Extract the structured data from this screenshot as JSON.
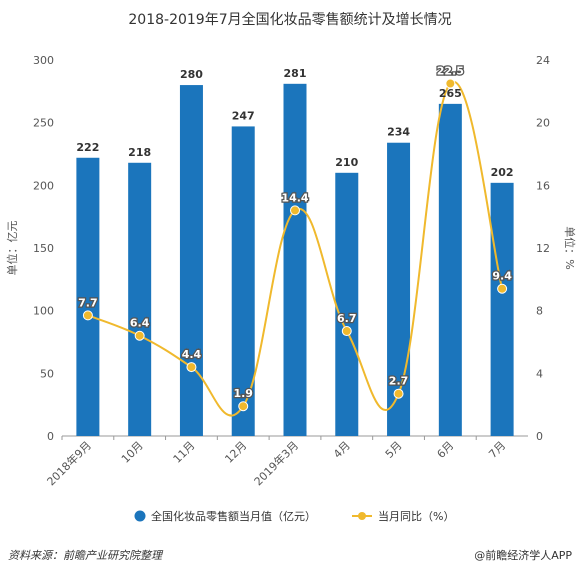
{
  "chart_data": {
    "type": "bar",
    "title": "2018-2019年7月全国化妆品零售额统计及增长情况",
    "categories": [
      "2018年9月",
      "10月",
      "11月",
      "12月",
      "2019年3月",
      "4月",
      "5月",
      "6月",
      "7月"
    ],
    "series": [
      {
        "name": "全国化妆品零售额当月值（亿元）",
        "type": "bar",
        "axis": "left",
        "values": [
          222,
          218,
          280,
          247,
          281,
          210,
          234,
          265,
          202
        ],
        "color": "#1b75bc"
      },
      {
        "name": "当月同比（%）",
        "type": "line",
        "axis": "right",
        "values": [
          7.7,
          6.4,
          4.4,
          1.9,
          14.4,
          6.7,
          2.7,
          22.5,
          9.4
        ],
        "color": "#f0b92d"
      }
    ],
    "y_left": {
      "label": "单位：亿元",
      "min": 0,
      "max": 300,
      "ticks": [
        0,
        50,
        100,
        150,
        200,
        250,
        300
      ]
    },
    "y_right": {
      "label": "单位：%",
      "min": 0,
      "max": 24,
      "ticks": [
        0,
        4,
        8,
        12,
        16,
        20,
        24
      ]
    },
    "legend_position": "bottom",
    "grid": false
  },
  "footer": {
    "source": "资料来源：前瞻产业研究院整理",
    "brand": "@前瞻经济学人APP"
  }
}
